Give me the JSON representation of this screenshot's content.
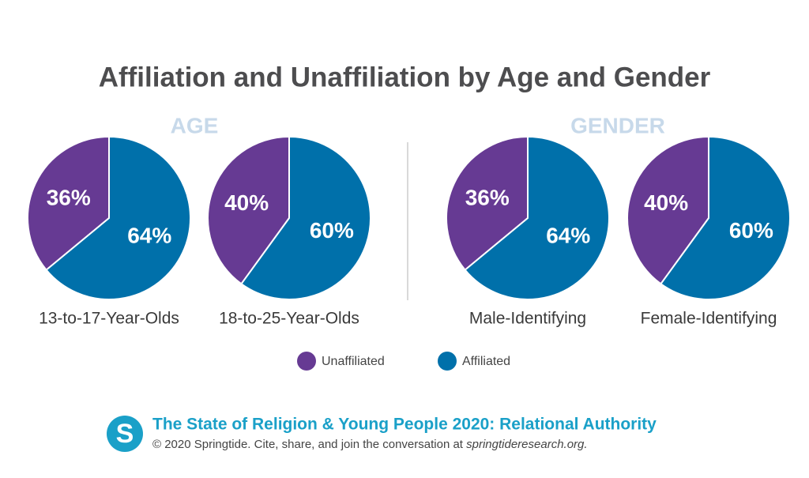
{
  "title": "Affiliation and Unaffiliation by Age and Gender",
  "groups": [
    "AGE",
    "GENDER"
  ],
  "chart_data": [
    {
      "type": "pie",
      "label": "13-to-17-Year-Olds",
      "categories": [
        "Unaffiliated",
        "Affiliated"
      ],
      "values": [
        36,
        64
      ],
      "value_labels": [
        "36%",
        "64%"
      ],
      "colors": [
        "#663a93",
        "#0070aa"
      ]
    },
    {
      "type": "pie",
      "label": "18-to-25-Year-Olds",
      "categories": [
        "Unaffiliated",
        "Affiliated"
      ],
      "values": [
        40,
        60
      ],
      "value_labels": [
        "40%",
        "60%"
      ],
      "colors": [
        "#663a93",
        "#0070aa"
      ]
    },
    {
      "type": "pie",
      "label": "Male-Identifying",
      "categories": [
        "Unaffiliated",
        "Affiliated"
      ],
      "values": [
        36,
        64
      ],
      "value_labels": [
        "36%",
        "64%"
      ],
      "colors": [
        "#663a93",
        "#0070aa"
      ]
    },
    {
      "type": "pie",
      "label": "Female-Identifying",
      "categories": [
        "Unaffiliated",
        "Affiliated"
      ],
      "values": [
        40,
        60
      ],
      "value_labels": [
        "40%",
        "60%"
      ],
      "colors": [
        "#663a93",
        "#0070aa"
      ]
    }
  ],
  "footer": {
    "logo": "S",
    "title": "The State of Religion & Young People 2020: Relational Authority",
    "copyright": "© 2020 Springtide. Cite, share, and join the conversation at ",
    "link": "springtideresearch.org."
  }
}
